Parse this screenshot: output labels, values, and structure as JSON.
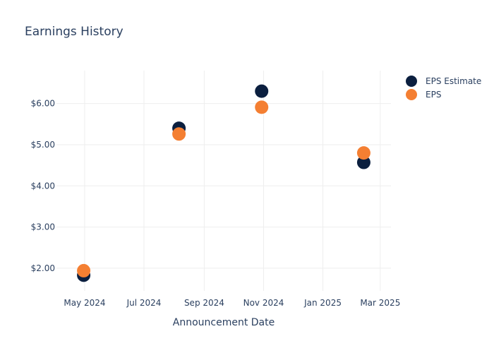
{
  "chart_data": {
    "type": "scatter",
    "title": "Earnings History",
    "xlabel": "Announcement Date",
    "ylabel": "",
    "x_ticks": [
      "2024-05-01",
      "2024-07-01",
      "2024-09-01",
      "2024-11-01",
      "2025-01-01",
      "2025-03-01"
    ],
    "x_tick_labels": [
      "May 2024",
      "Jul 2024",
      "Sep 2024",
      "Nov 2024",
      "Jan 2025",
      "Mar 2025"
    ],
    "xlim": [
      "2024-04-02",
      "2025-03-12"
    ],
    "y_ticks": [
      2,
      3,
      4,
      5,
      6
    ],
    "y_tick_labels": [
      "$2.00",
      "$3.00",
      "$4.00",
      "$5.00",
      "$6.00"
    ],
    "ylim": [
      1.45,
      6.8
    ],
    "grid": true,
    "legend_position": "top-right",
    "series": [
      {
        "name": "EPS Estimate",
        "color": "#0b1f3f",
        "points": [
          {
            "x": "2024-04-30",
            "y": 1.83
          },
          {
            "x": "2024-08-06",
            "y": 5.4
          },
          {
            "x": "2024-10-30",
            "y": 6.3
          },
          {
            "x": "2025-02-12",
            "y": 4.57
          }
        ]
      },
      {
        "name": "EPS",
        "color": "#f47f32",
        "points": [
          {
            "x": "2024-04-30",
            "y": 1.94
          },
          {
            "x": "2024-08-06",
            "y": 5.26
          },
          {
            "x": "2024-10-30",
            "y": 5.91
          },
          {
            "x": "2025-02-12",
            "y": 4.8
          }
        ]
      }
    ]
  }
}
